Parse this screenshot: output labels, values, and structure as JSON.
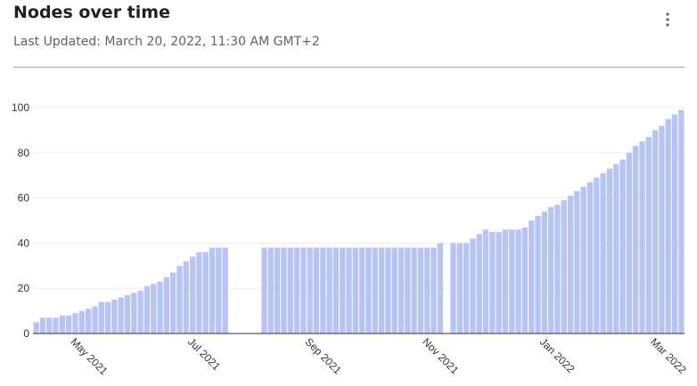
{
  "chart_data": {
    "type": "bar",
    "title": "Nodes over time",
    "subtitle": "Last Updated: March 20, 2022, 11:30 AM GMT+2",
    "categories": [
      null,
      null,
      null,
      null,
      null,
      null,
      "May 2021",
      null,
      null,
      null,
      null,
      null,
      null,
      null,
      null,
      null,
      null,
      null,
      null,
      null,
      null,
      null,
      null,
      null,
      "Jul 2021",
      null,
      null,
      null,
      null,
      null,
      null,
      null,
      null,
      null,
      null,
      null,
      null,
      null,
      null,
      null,
      null,
      null,
      "Sep 2021",
      null,
      null,
      null,
      null,
      null,
      null,
      null,
      null,
      null,
      null,
      null,
      null,
      null,
      null,
      null,
      null,
      null,
      "Nov 2021",
      null,
      null,
      null,
      null,
      null,
      null,
      null,
      null,
      null,
      null,
      null,
      null,
      null,
      null,
      null,
      null,
      null,
      "Jan 2022",
      null,
      null,
      null,
      null,
      null,
      null,
      null,
      null,
      null,
      null,
      null,
      null,
      null,
      null,
      null,
      null,
      "Mar 2022",
      null,
      null,
      null,
      null
    ],
    "values": [
      5,
      7,
      7,
      7,
      8,
      8,
      9,
      10,
      11,
      12,
      14,
      14,
      15,
      16,
      17,
      18,
      19,
      21,
      22,
      23,
      25,
      27,
      30,
      32,
      34,
      36,
      36,
      38,
      38,
      38,
      null,
      null,
      null,
      null,
      null,
      38,
      38,
      38,
      38,
      38,
      38,
      38,
      38,
      38,
      38,
      38,
      38,
      38,
      38,
      38,
      38,
      38,
      38,
      38,
      38,
      38,
      38,
      38,
      38,
      38,
      38,
      38,
      40,
      null,
      40,
      40,
      40,
      42,
      44,
      46,
      45,
      45,
      46,
      46,
      46,
      47,
      50,
      52,
      54,
      56,
      57,
      59,
      61,
      63,
      65,
      67,
      69,
      71,
      73,
      75,
      77,
      80,
      83,
      85,
      87,
      90,
      92,
      95,
      97,
      99
    ],
    "color": "#b8c4f5",
    "ylim": [
      0,
      100
    ],
    "yticks": [
      0,
      20,
      40,
      60,
      80,
      100
    ],
    "grid": true
  }
}
